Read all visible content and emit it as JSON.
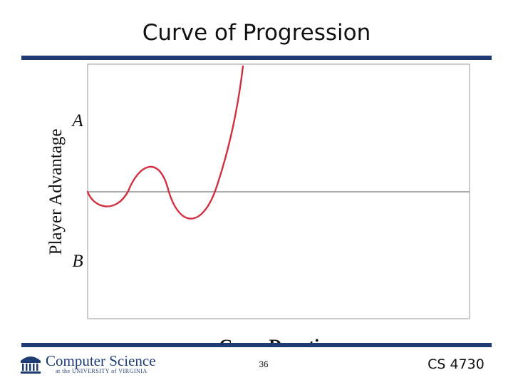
{
  "slide": {
    "title": "Curve of Progression",
    "page_number": "36",
    "course": "CS 4730"
  },
  "logo": {
    "name": "Computer Science",
    "subtitle": "at the UNIVERSITY of VIRGINIA"
  },
  "figure": {
    "y_axis_label": "Player Advantage",
    "x_axis_label": "Game Duration",
    "top_marker": "A",
    "bottom_marker": "B",
    "curve_color": "#d0303f",
    "baseline_color": "#777777"
  },
  "colors": {
    "rule": "#1f3b73",
    "brand": "#1f3b73"
  }
}
